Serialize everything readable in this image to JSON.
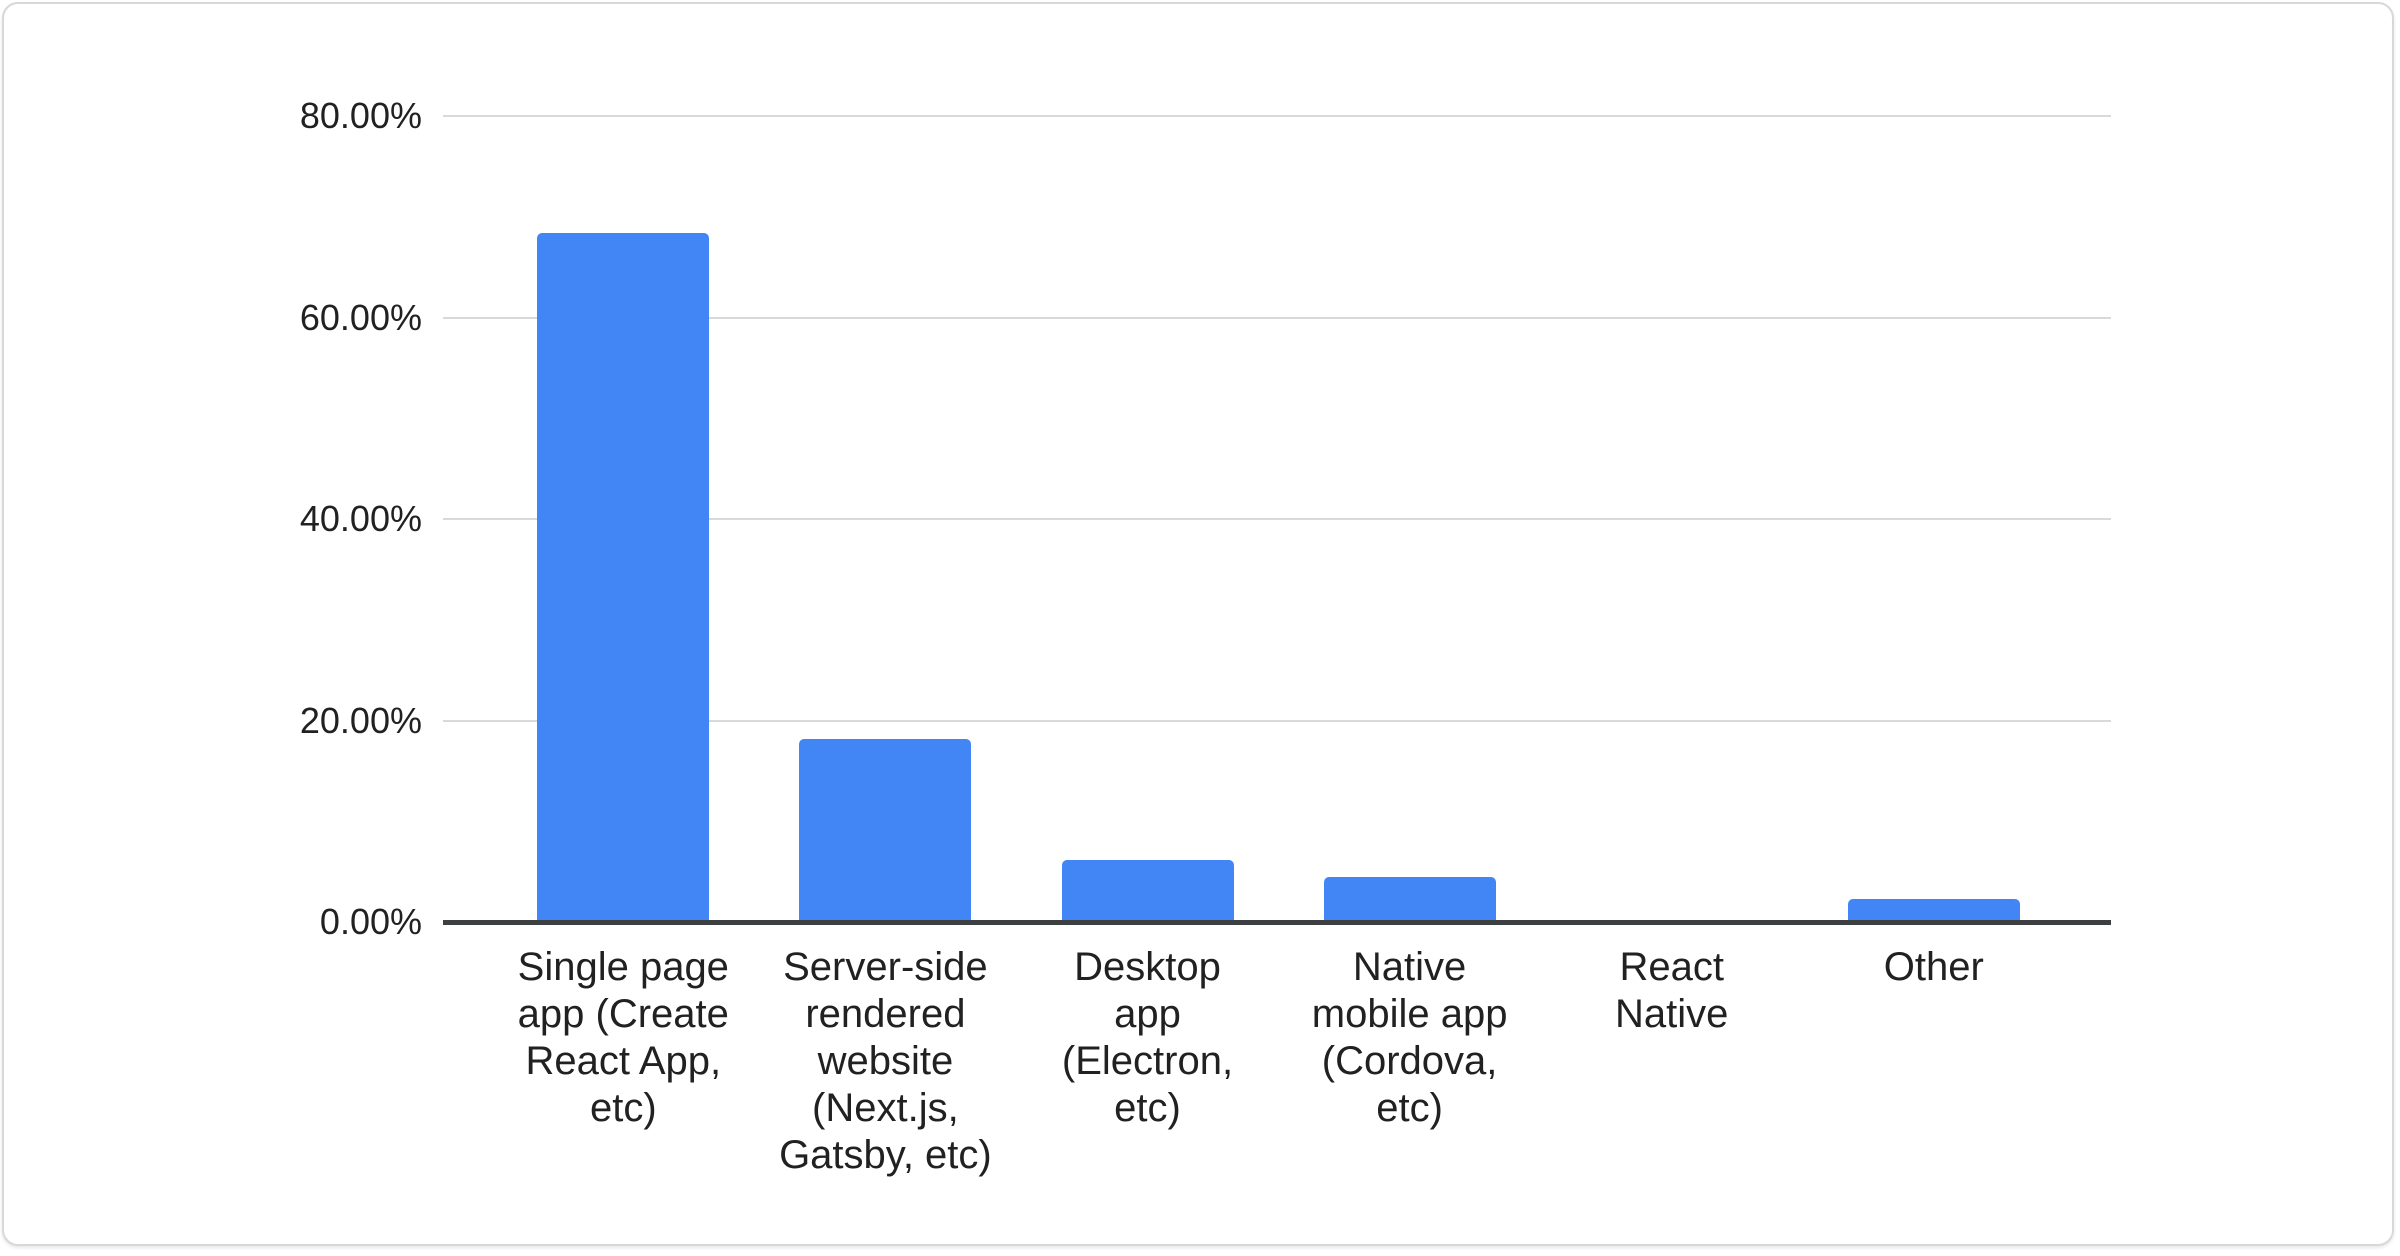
{
  "chart_data": {
    "type": "bar",
    "title": "",
    "categories": [
      "Single page\napp (Create\nReact App,\netc)",
      "Server-side\nrendered\nwebsite\n(Next.js,\nGatsby, etc)",
      "Desktop\napp\n(Electron,\netc)",
      "Native\nmobile app\n(Cordova,\netc)",
      "React\nNative",
      "Other"
    ],
    "values": [
      68.4,
      18.2,
      6.2,
      4.5,
      0,
      2.3
    ],
    "series_name": "",
    "xlabel": "",
    "ylabel": "",
    "ylim": [
      0,
      80
    ],
    "grid": true,
    "legend_position": "none",
    "y_axis": {
      "min": 0,
      "max": 80,
      "ticks": [
        {
          "value": 80,
          "label": "80.00%"
        },
        {
          "value": 60,
          "label": "60.00%"
        },
        {
          "value": 40,
          "label": "40.00%"
        },
        {
          "value": 20,
          "label": "20.00%"
        },
        {
          "value": 0,
          "label": "0.00%"
        }
      ]
    }
  },
  "colors": {
    "bar": "#4285f4",
    "axis": "#3c4043",
    "grid": "#d9d9d9",
    "tick_text": "#212121",
    "category_text": "#212121",
    "card_border": "#d6d8dc",
    "background": "#ffffff"
  }
}
